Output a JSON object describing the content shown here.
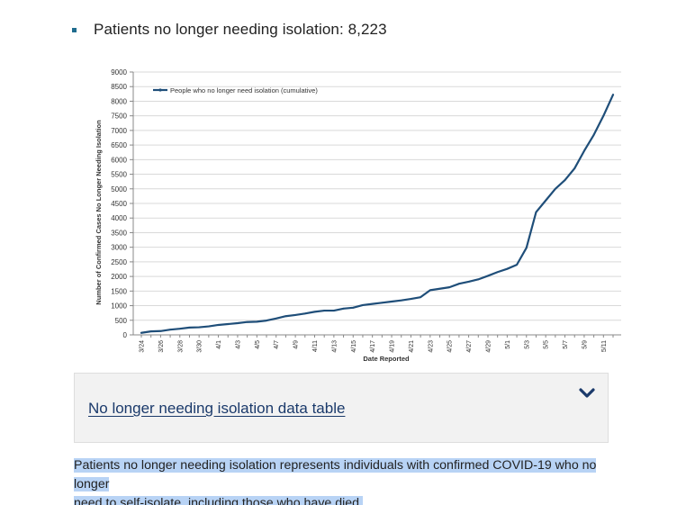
{
  "headline": "Patients no longer needing isolation: 8,223",
  "accordion": {
    "link_text": "No longer needing isolation data table",
    "chevron_icon": "chevron-down-icon"
  },
  "note": {
    "line1": "Patients no longer needing isolation represents individuals with confirmed COVID-19 who no longer",
    "line2": "need to self-isolate, including those who have died."
  },
  "colors": {
    "series": "#1f4e79",
    "bullet": "#1f6c8e",
    "link": "#1b3a6b",
    "highlight": "#b8d3f5"
  },
  "chart_data": {
    "type": "line",
    "title": "",
    "xlabel": "Date Reported",
    "ylabel": "Number of Confirmed Cases No Longer Needing Isolation",
    "ylim": [
      0,
      9000
    ],
    "y_ticks": [
      0,
      500,
      1000,
      1500,
      2000,
      2500,
      3000,
      3500,
      4000,
      4500,
      5000,
      5500,
      6000,
      6500,
      7000,
      7500,
      8000,
      8500,
      9000
    ],
    "grid": true,
    "legend_position": "top-left",
    "x": [
      "3/24",
      "3/25",
      "3/26",
      "3/27",
      "3/28",
      "3/29",
      "3/30",
      "3/31",
      "4/1",
      "4/2",
      "4/3",
      "4/4",
      "4/5",
      "4/6",
      "4/7",
      "4/8",
      "4/9",
      "4/10",
      "4/11",
      "4/12",
      "4/13",
      "4/14",
      "4/15",
      "4/16",
      "4/17",
      "4/18",
      "4/19",
      "4/20",
      "4/21",
      "4/22",
      "4/23",
      "4/24",
      "4/25",
      "4/26",
      "4/27",
      "4/28",
      "4/29",
      "4/30",
      "5/1",
      "5/2",
      "5/3",
      "5/4",
      "5/5",
      "5/6",
      "5/7",
      "5/8",
      "5/9",
      "5/10",
      "5/11",
      "5/12"
    ],
    "x_tick_labels": [
      "3/24",
      "3/26",
      "3/28",
      "3/30",
      "4/1",
      "4/3",
      "4/5",
      "4/7",
      "4/9",
      "4/11",
      "4/13",
      "4/15",
      "4/17",
      "4/19",
      "4/21",
      "4/23",
      "4/25",
      "4/27",
      "4/29",
      "5/1",
      "5/3",
      "5/5",
      "5/7",
      "5/9",
      "5/11"
    ],
    "series": [
      {
        "name": "People who no longer need isolation (cumulative)",
        "values": [
          70,
          120,
          130,
          180,
          210,
          250,
          260,
          290,
          340,
          370,
          400,
          440,
          450,
          490,
          560,
          640,
          680,
          730,
          790,
          830,
          830,
          900,
          930,
          1020,
          1060,
          1100,
          1140,
          1180,
          1230,
          1290,
          1530,
          1580,
          1630,
          1750,
          1820,
          1900,
          2020,
          2150,
          2260,
          2400,
          2980,
          4200,
          4600,
          5000,
          5300,
          5700,
          6300,
          6850,
          7500,
          8223
        ]
      }
    ]
  }
}
